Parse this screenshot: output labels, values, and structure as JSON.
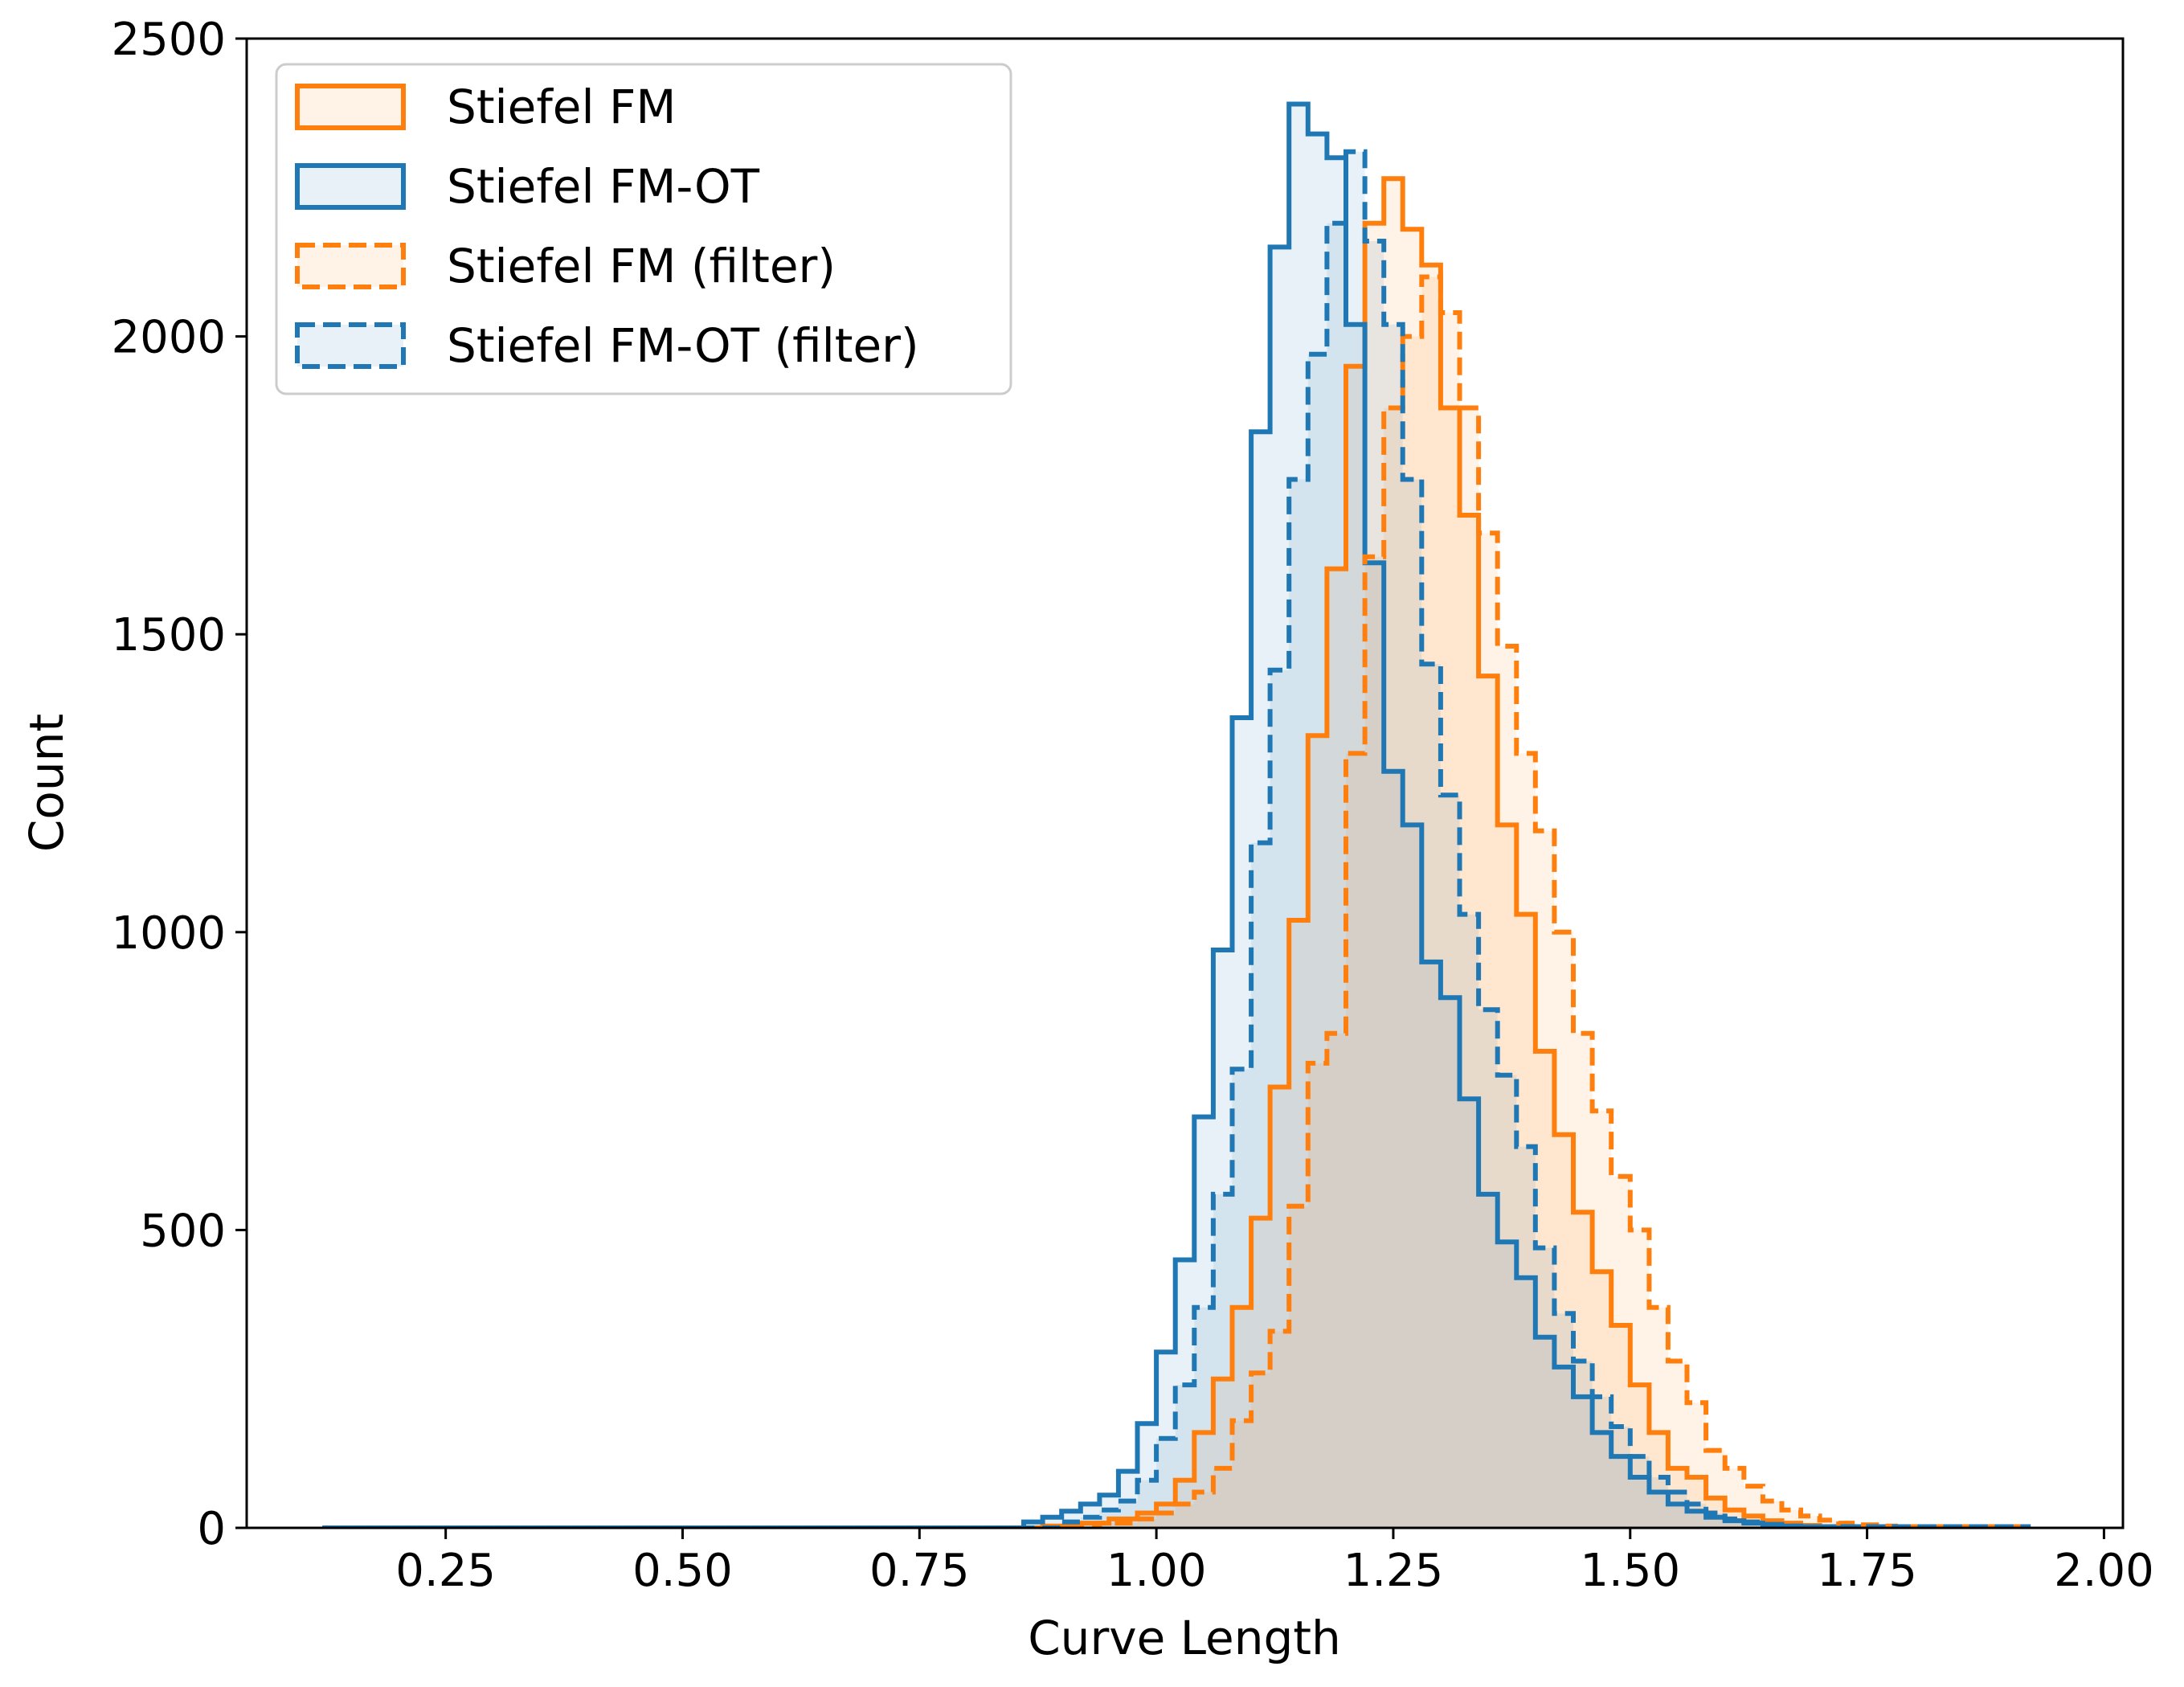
{
  "chart_data": {
    "type": "histogram",
    "xlabel": "Curve Length",
    "ylabel": "Count",
    "xlim": [
      0.04,
      2.02
    ],
    "ylim": [
      0,
      2500
    ],
    "x_ticks": [
      "0.25",
      "0.50",
      "0.75",
      "1.00",
      "1.25",
      "1.50",
      "1.75",
      "2.00"
    ],
    "y_ticks": [
      "0",
      "500",
      "1000",
      "1500",
      "2000",
      "2500"
    ],
    "grid": false,
    "legend_position": "top-left",
    "histogram": "step outlines with light translucent fill",
    "series": [
      {
        "name": "Stiefel FM",
        "color": "#ff7f0e",
        "linestyle": "solid",
        "points": [
          [
            0.12,
            0
          ],
          [
            0.88,
            3
          ],
          [
            0.92,
            8
          ],
          [
            0.95,
            15
          ],
          [
            0.98,
            25
          ],
          [
            1.0,
            40
          ],
          [
            1.02,
            80
          ],
          [
            1.04,
            160
          ],
          [
            1.06,
            250
          ],
          [
            1.08,
            370
          ],
          [
            1.1,
            520
          ],
          [
            1.12,
            740
          ],
          [
            1.14,
            1020
          ],
          [
            1.16,
            1330
          ],
          [
            1.18,
            1610
          ],
          [
            1.2,
            1950
          ],
          [
            1.22,
            2190
          ],
          [
            1.24,
            2265
          ],
          [
            1.26,
            2180
          ],
          [
            1.28,
            2120
          ],
          [
            1.3,
            1880
          ],
          [
            1.32,
            1700
          ],
          [
            1.34,
            1430
          ],
          [
            1.36,
            1180
          ],
          [
            1.38,
            1030
          ],
          [
            1.4,
            800
          ],
          [
            1.42,
            660
          ],
          [
            1.44,
            530
          ],
          [
            1.46,
            430
          ],
          [
            1.48,
            340
          ],
          [
            1.5,
            240
          ],
          [
            1.52,
            160
          ],
          [
            1.54,
            100
          ],
          [
            1.56,
            85
          ],
          [
            1.58,
            50
          ],
          [
            1.6,
            30
          ],
          [
            1.62,
            20
          ],
          [
            1.64,
            12
          ],
          [
            1.66,
            8
          ],
          [
            1.68,
            4
          ],
          [
            1.7,
            2
          ],
          [
            1.92,
            0
          ]
        ]
      },
      {
        "name": "Stiefel FM-OT",
        "color": "#1f77b4",
        "linestyle": "solid",
        "points": [
          [
            0.12,
            0
          ],
          [
            0.86,
            10
          ],
          [
            0.88,
            18
          ],
          [
            0.9,
            28
          ],
          [
            0.92,
            40
          ],
          [
            0.94,
            55
          ],
          [
            0.96,
            95
          ],
          [
            0.98,
            175
          ],
          [
            1.0,
            295
          ],
          [
            1.02,
            450
          ],
          [
            1.04,
            690
          ],
          [
            1.06,
            970
          ],
          [
            1.08,
            1360
          ],
          [
            1.1,
            1840
          ],
          [
            1.12,
            2150
          ],
          [
            1.14,
            2390
          ],
          [
            1.16,
            2340
          ],
          [
            1.18,
            2300
          ],
          [
            1.2,
            2020
          ],
          [
            1.22,
            1620
          ],
          [
            1.24,
            1270
          ],
          [
            1.26,
            1180
          ],
          [
            1.28,
            950
          ],
          [
            1.3,
            890
          ],
          [
            1.32,
            720
          ],
          [
            1.34,
            560
          ],
          [
            1.36,
            480
          ],
          [
            1.38,
            420
          ],
          [
            1.4,
            320
          ],
          [
            1.42,
            270
          ],
          [
            1.44,
            220
          ],
          [
            1.46,
            160
          ],
          [
            1.48,
            120
          ],
          [
            1.5,
            85
          ],
          [
            1.52,
            60
          ],
          [
            1.54,
            40
          ],
          [
            1.56,
            28
          ],
          [
            1.58,
            18
          ],
          [
            1.6,
            12
          ],
          [
            1.62,
            8
          ],
          [
            1.64,
            5
          ],
          [
            1.66,
            3
          ],
          [
            1.68,
            2
          ],
          [
            1.92,
            0
          ]
        ]
      },
      {
        "name": "Stiefel FM (filter)",
        "color": "#ff7f0e",
        "linestyle": "dashed",
        "points": [
          [
            0.12,
            0
          ],
          [
            0.9,
            3
          ],
          [
            0.94,
            8
          ],
          [
            0.98,
            15
          ],
          [
            1.0,
            25
          ],
          [
            1.02,
            40
          ],
          [
            1.04,
            60
          ],
          [
            1.06,
            100
          ],
          [
            1.08,
            180
          ],
          [
            1.1,
            260
          ],
          [
            1.12,
            330
          ],
          [
            1.14,
            540
          ],
          [
            1.16,
            780
          ],
          [
            1.18,
            830
          ],
          [
            1.2,
            1300
          ],
          [
            1.22,
            1630
          ],
          [
            1.24,
            1880
          ],
          [
            1.26,
            2000
          ],
          [
            1.28,
            2100
          ],
          [
            1.3,
            2040
          ],
          [
            1.32,
            1880
          ],
          [
            1.34,
            1670
          ],
          [
            1.36,
            1480
          ],
          [
            1.38,
            1300
          ],
          [
            1.4,
            1170
          ],
          [
            1.42,
            1000
          ],
          [
            1.44,
            830
          ],
          [
            1.46,
            700
          ],
          [
            1.48,
            590
          ],
          [
            1.5,
            500
          ],
          [
            1.52,
            370
          ],
          [
            1.54,
            280
          ],
          [
            1.56,
            210
          ],
          [
            1.58,
            130
          ],
          [
            1.6,
            100
          ],
          [
            1.62,
            70
          ],
          [
            1.64,
            45
          ],
          [
            1.66,
            30
          ],
          [
            1.68,
            20
          ],
          [
            1.7,
            13
          ],
          [
            1.72,
            8
          ],
          [
            1.74,
            5
          ],
          [
            1.76,
            3
          ],
          [
            1.78,
            2
          ],
          [
            1.92,
            0
          ]
        ]
      },
      {
        "name": "Stiefel FM-OT (filter)",
        "color": "#1f77b4",
        "linestyle": "dashed",
        "points": [
          [
            0.12,
            0
          ],
          [
            0.9,
            10
          ],
          [
            0.92,
            18
          ],
          [
            0.94,
            30
          ],
          [
            0.96,
            45
          ],
          [
            0.98,
            80
          ],
          [
            1.0,
            150
          ],
          [
            1.02,
            240
          ],
          [
            1.04,
            370
          ],
          [
            1.06,
            560
          ],
          [
            1.08,
            770
          ],
          [
            1.1,
            1150
          ],
          [
            1.12,
            1440
          ],
          [
            1.14,
            1760
          ],
          [
            1.16,
            1970
          ],
          [
            1.18,
            2190
          ],
          [
            1.2,
            2310
          ],
          [
            1.22,
            2160
          ],
          [
            1.24,
            2020
          ],
          [
            1.26,
            1760
          ],
          [
            1.28,
            1450
          ],
          [
            1.3,
            1230
          ],
          [
            1.32,
            1030
          ],
          [
            1.34,
            870
          ],
          [
            1.36,
            760
          ],
          [
            1.38,
            640
          ],
          [
            1.4,
            470
          ],
          [
            1.42,
            360
          ],
          [
            1.44,
            280
          ],
          [
            1.46,
            220
          ],
          [
            1.48,
            170
          ],
          [
            1.5,
            120
          ],
          [
            1.52,
            85
          ],
          [
            1.54,
            60
          ],
          [
            1.56,
            40
          ],
          [
            1.58,
            25
          ],
          [
            1.6,
            15
          ],
          [
            1.62,
            10
          ],
          [
            1.64,
            6
          ],
          [
            1.66,
            3
          ],
          [
            1.68,
            2
          ],
          [
            1.92,
            0
          ]
        ]
      }
    ]
  }
}
